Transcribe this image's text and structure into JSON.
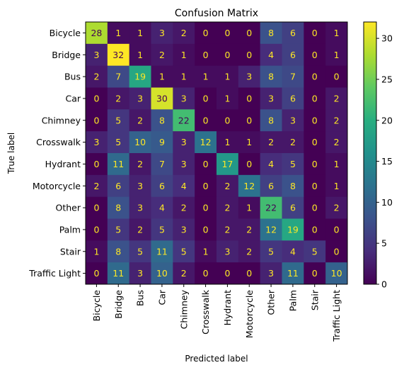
{
  "chart_data": {
    "type": "heatmap",
    "title": "Confusion Matrix",
    "xlabel": "Predicted label",
    "ylabel": "True label",
    "labels": [
      "Bicycle",
      "Bridge",
      "Bus",
      "Car",
      "Chimney",
      "Crosswalk",
      "Hydrant",
      "Motorcycle",
      "Other",
      "Palm",
      "Stair",
      "Traffic Light"
    ],
    "matrix": [
      [
        28,
        1,
        1,
        3,
        2,
        0,
        0,
        0,
        8,
        6,
        0,
        1
      ],
      [
        3,
        32,
        1,
        2,
        1,
        0,
        0,
        0,
        4,
        6,
        0,
        1
      ],
      [
        2,
        7,
        19,
        1,
        1,
        1,
        1,
        3,
        8,
        7,
        0,
        0
      ],
      [
        0,
        2,
        3,
        30,
        3,
        0,
        1,
        0,
        3,
        6,
        0,
        2
      ],
      [
        0,
        5,
        2,
        8,
        22,
        0,
        0,
        0,
        8,
        3,
        0,
        2
      ],
      [
        3,
        5,
        10,
        9,
        3,
        12,
        1,
        1,
        2,
        2,
        0,
        2
      ],
      [
        0,
        11,
        2,
        7,
        3,
        0,
        17,
        0,
        4,
        5,
        0,
        1
      ],
      [
        2,
        6,
        3,
        6,
        4,
        0,
        2,
        12,
        6,
        8,
        0,
        1
      ],
      [
        0,
        8,
        3,
        4,
        2,
        0,
        2,
        1,
        22,
        6,
        0,
        2
      ],
      [
        0,
        5,
        2,
        5,
        3,
        0,
        2,
        2,
        12,
        19,
        0,
        0
      ],
      [
        1,
        8,
        5,
        11,
        5,
        1,
        3,
        2,
        5,
        4,
        5,
        0
      ],
      [
        0,
        11,
        3,
        10,
        2,
        0,
        0,
        0,
        3,
        11,
        0,
        10
      ]
    ],
    "vmin": 0,
    "vmax": 32,
    "colormap": "viridis",
    "colorbar_ticks": [
      0,
      5,
      10,
      15,
      20,
      25,
      30
    ],
    "grid": false
  }
}
